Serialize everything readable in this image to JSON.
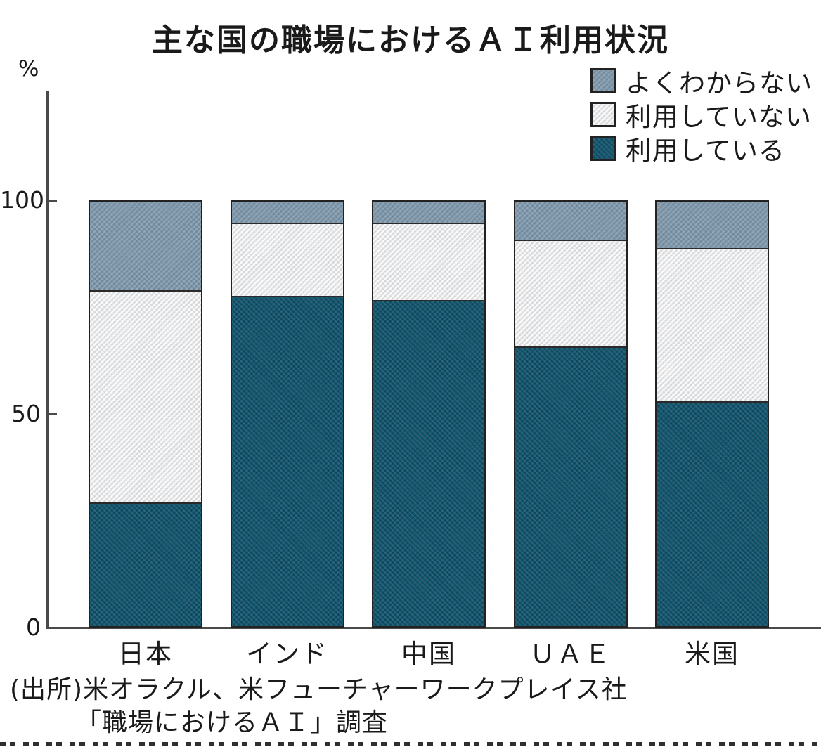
{
  "title": "主な国の職場におけるＡＩ利用状況",
  "y_axis": {
    "unit_label": "%",
    "ticks": [
      0,
      50,
      100
    ]
  },
  "legend_order_top_to_bottom": [
    "よくわからない",
    "利用していない",
    "利用している"
  ],
  "source": {
    "line1": "(出所)米オラクル、米フューチャーワークプレイス社",
    "line2": "「職場におけるＡＩ」調査"
  },
  "colors": {
    "using": "#12566f",
    "not_using": "#e4e5e7",
    "dont_know": "#7d95a8",
    "axis": "#4a4a4a",
    "bar_border": "#222222",
    "text": "#1a1a1a",
    "background": "#ffffff"
  },
  "chart_data": {
    "type": "bar",
    "stacked": true,
    "title": "主な国の職場におけるＡＩ利用状況",
    "ylabel": "%",
    "ylim": [
      0,
      100
    ],
    "yticks": [
      0,
      50,
      100
    ],
    "grid": false,
    "legend_position": "top-right",
    "categories": [
      "日本",
      "インド",
      "中国",
      "ＵＡＥ",
      "米国"
    ],
    "series": [
      {
        "name": "利用している",
        "color": "#12566f",
        "values": [
          29,
          78,
          77,
          66,
          53
        ]
      },
      {
        "name": "利用していない",
        "color": "#e4e5e7",
        "values": [
          50,
          17,
          18,
          25,
          36
        ]
      },
      {
        "name": "よくわからない",
        "color": "#7d95a8",
        "values": [
          21,
          5,
          5,
          9,
          11
        ]
      }
    ]
  }
}
